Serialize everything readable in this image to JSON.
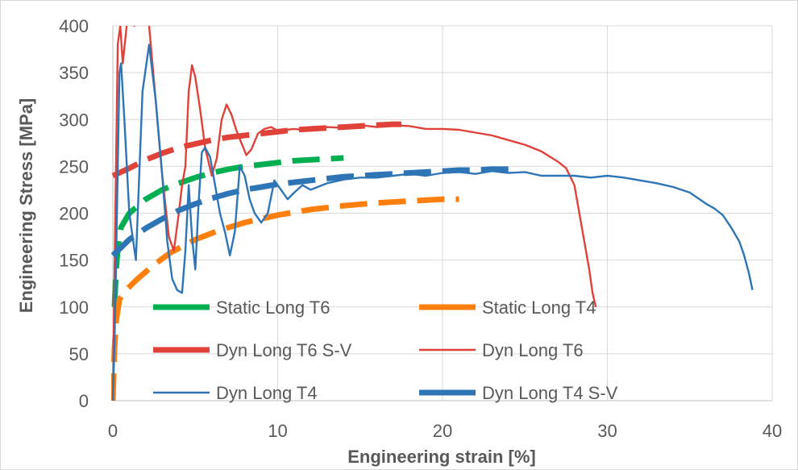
{
  "chart_data": {
    "type": "line",
    "title": "",
    "xlabel": "Engineering strain [%]",
    "ylabel": "Engineering Stress [MPa]",
    "xlim": [
      0,
      40
    ],
    "ylim": [
      0,
      400
    ],
    "x_ticks": [
      "0",
      "10",
      "20",
      "30",
      "40"
    ],
    "y_ticks": [
      "0",
      "50",
      "100",
      "150",
      "200",
      "250",
      "300",
      "350",
      "400"
    ],
    "grid": true,
    "legend_position": "lower-left, inside plot, two columns",
    "series": [
      {
        "name": "Static Long T6",
        "color": "#00b050",
        "style": "thick-dashed",
        "x": [
          0.1,
          0.2,
          0.3,
          0.5,
          1.0,
          2.0,
          3.0,
          4.0,
          5.0,
          6.0,
          7.0,
          8.0,
          9.0,
          10.0,
          11.0,
          12.0,
          13.0,
          14.0
        ],
        "y": [
          100,
          140,
          162,
          185,
          200,
          215,
          225,
          232,
          238,
          243,
          247,
          250,
          252,
          254,
          256,
          257,
          258,
          259
        ]
      },
      {
        "name": "Static Long T4",
        "color": "#ff7f0e",
        "style": "thick-dashed",
        "x": [
          0.0,
          0.1,
          0.2,
          0.4,
          0.8,
          1.5,
          2.5,
          3.5,
          5.0,
          6.5,
          8.0,
          10.0,
          12.0,
          14.0,
          16.0,
          18.0,
          20.0,
          21.0
        ],
        "y": [
          0,
          55,
          85,
          108,
          118,
          130,
          145,
          158,
          172,
          182,
          190,
          198,
          204,
          208,
          211,
          213,
          215,
          215
        ]
      },
      {
        "name": "Dyn Long T6 S-V",
        "color": "#e0423a",
        "style": "thick-dashed",
        "x": [
          0.0,
          1.0,
          2.0,
          3.0,
          4.0,
          5.0,
          6.0,
          7.0,
          8.0,
          9.0,
          10.0,
          11.0,
          12.0,
          13.0,
          14.0,
          15.0,
          16.0,
          17.0,
          17.5
        ],
        "y": [
          240,
          248,
          257,
          264,
          270,
          274,
          278,
          281,
          283,
          285,
          287,
          289,
          290,
          291,
          292,
          293,
          294,
          295,
          295
        ]
      },
      {
        "name": "Dyn Long T6",
        "color": "#e0423a",
        "style": "thin-solid",
        "x": [
          0.0,
          0.15,
          0.3,
          0.45,
          0.6,
          0.9,
          1.3,
          1.8,
          2.2,
          2.6,
          3.0,
          3.4,
          3.7,
          4.0,
          4.2,
          4.4,
          4.6,
          4.8,
          5.0,
          5.3,
          5.6,
          6.0,
          6.3,
          6.6,
          6.9,
          7.2,
          7.5,
          7.8,
          8.1,
          8.4,
          8.8,
          9.2,
          9.6,
          10.0,
          11.0,
          12.0,
          13.0,
          14.0,
          15.0,
          16.0,
          17.0,
          18.0,
          19.0,
          20.0,
          21.0,
          22.0,
          23.0,
          24.0,
          25.0,
          26.0,
          27.0,
          27.5,
          28.0,
          28.3,
          28.6,
          28.9,
          29.1,
          29.3
        ],
        "y": [
          0,
          200,
          380,
          400,
          360,
          410,
          400,
          420,
          400,
          320,
          240,
          175,
          160,
          200,
          230,
          250,
          330,
          358,
          345,
          310,
          270,
          240,
          258,
          300,
          316,
          305,
          288,
          275,
          262,
          268,
          285,
          290,
          292,
          288,
          290,
          288,
          292,
          291,
          294,
          292,
          294,
          293,
          290,
          290,
          289,
          286,
          283,
          278,
          273,
          266,
          255,
          248,
          230,
          200,
          170,
          140,
          115,
          100
        ]
      },
      {
        "name": "Dyn Long T4",
        "color": "#2e75b6",
        "style": "thin-solid",
        "x": [
          0.0,
          0.1,
          0.2,
          0.3,
          0.4,
          0.5,
          0.7,
          1.0,
          1.4,
          1.8,
          2.2,
          2.6,
          3.0,
          3.3,
          3.6,
          3.9,
          4.2,
          4.4,
          4.6,
          4.8,
          5.0,
          5.2,
          5.4,
          5.6,
          5.9,
          6.2,
          6.5,
          6.8,
          7.1,
          7.4,
          7.7,
          8.0,
          8.3,
          8.6,
          9.0,
          9.4,
          9.8,
          10.2,
          10.6,
          11.0,
          11.5,
          12.0,
          13.0,
          14.0,
          15.0,
          16.0,
          17.0,
          18.0,
          19.0,
          20.0,
          21.0,
          22.0,
          23.0,
          24.0,
          25.0,
          26.0,
          27.0,
          28.0,
          29.0,
          30.0,
          31.0,
          32.0,
          33.0,
          34.0,
          35.0,
          36.0,
          36.5,
          37.0,
          37.5,
          38.0,
          38.3,
          38.6,
          38.8
        ],
        "y": [
          0,
          60,
          150,
          250,
          350,
          360,
          300,
          200,
          150,
          330,
          380,
          320,
          240,
          170,
          130,
          118,
          115,
          160,
          230,
          175,
          140,
          210,
          265,
          270,
          260,
          230,
          200,
          180,
          155,
          180,
          250,
          240,
          215,
          200,
          190,
          200,
          235,
          225,
          215,
          222,
          230,
          225,
          232,
          236,
          238,
          238,
          240,
          242,
          240,
          243,
          244,
          242,
          245,
          243,
          244,
          240,
          240,
          240,
          238,
          240,
          238,
          235,
          232,
          228,
          222,
          210,
          205,
          198,
          185,
          170,
          155,
          135,
          118
        ]
      },
      {
        "name": "Dyn Long T4 S-V",
        "color": "#2e75b6",
        "style": "thick-dashed",
        "x": [
          0.0,
          1.0,
          2.0,
          3.0,
          4.0,
          5.0,
          6.0,
          7.0,
          8.0,
          9.0,
          10.0,
          11.0,
          12.0,
          13.0,
          14.0,
          15.0,
          16.0,
          17.0,
          18.0,
          19.0,
          20.0,
          21.0,
          22.0,
          23.0,
          24.0,
          24.5
        ],
        "y": [
          155,
          172,
          184,
          194,
          203,
          210,
          216,
          221,
          225,
          228,
          231,
          233,
          235,
          237,
          239,
          240,
          241,
          242,
          243,
          244,
          245,
          246,
          246,
          247,
          247,
          247
        ]
      }
    ],
    "legend": [
      {
        "label": "Static Long T6",
        "series": 0
      },
      {
        "label": "Static Long T4",
        "series": 1
      },
      {
        "label": "Dyn Long T6 S-V",
        "series": 2
      },
      {
        "label": "Dyn Long T6",
        "series": 3
      },
      {
        "label": "Dyn Long T4",
        "series": 4
      },
      {
        "label": "Dyn Long T4 S-V",
        "series": 5
      }
    ]
  }
}
